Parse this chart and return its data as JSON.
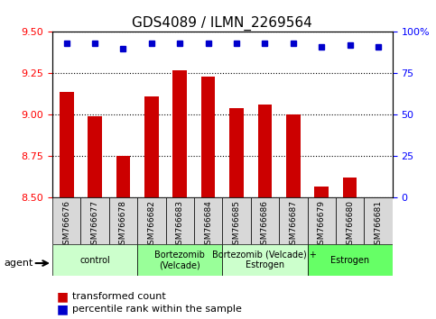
{
  "title": "GDS4089 / ILMN_2269564",
  "samples": [
    "GSM766676",
    "GSM766677",
    "GSM766678",
    "GSM766682",
    "GSM766683",
    "GSM766684",
    "GSM766685",
    "GSM766686",
    "GSM766687",
    "GSM766679",
    "GSM766680",
    "GSM766681"
  ],
  "bar_values": [
    9.14,
    8.99,
    8.75,
    9.11,
    9.27,
    9.23,
    9.04,
    9.06,
    9.0,
    8.57,
    8.62,
    8.5
  ],
  "bar_bottom": 8.5,
  "percentile_values": [
    93,
    93,
    90,
    93,
    93,
    93,
    93,
    93,
    93,
    91,
    92,
    91
  ],
  "ylim_left": [
    8.5,
    9.5
  ],
  "ylim_right": [
    0,
    100
  ],
  "yticks_left": [
    8.5,
    8.75,
    9.0,
    9.25,
    9.5
  ],
  "yticks_right": [
    0,
    25,
    50,
    75,
    100
  ],
  "bar_color": "#cc0000",
  "dot_color": "#0000cc",
  "groups": [
    {
      "label": "control",
      "start": 0,
      "end": 3,
      "color": "#ccffcc"
    },
    {
      "label": "Bortezomib\n(Velcade)",
      "start": 3,
      "end": 6,
      "color": "#99ff99"
    },
    {
      "label": "Bortezomib (Velcade) +\nEstrogen",
      "start": 6,
      "end": 9,
      "color": "#ccffcc"
    },
    {
      "label": "Estrogen",
      "start": 9,
      "end": 12,
      "color": "#66ff66"
    }
  ],
  "agent_label": "agent",
  "legend_bar_label": "transformed count",
  "legend_dot_label": "percentile rank within the sample",
  "grid_color": "#000000",
  "background_color": "#ffffff",
  "tick_area_color": "#dddddd"
}
